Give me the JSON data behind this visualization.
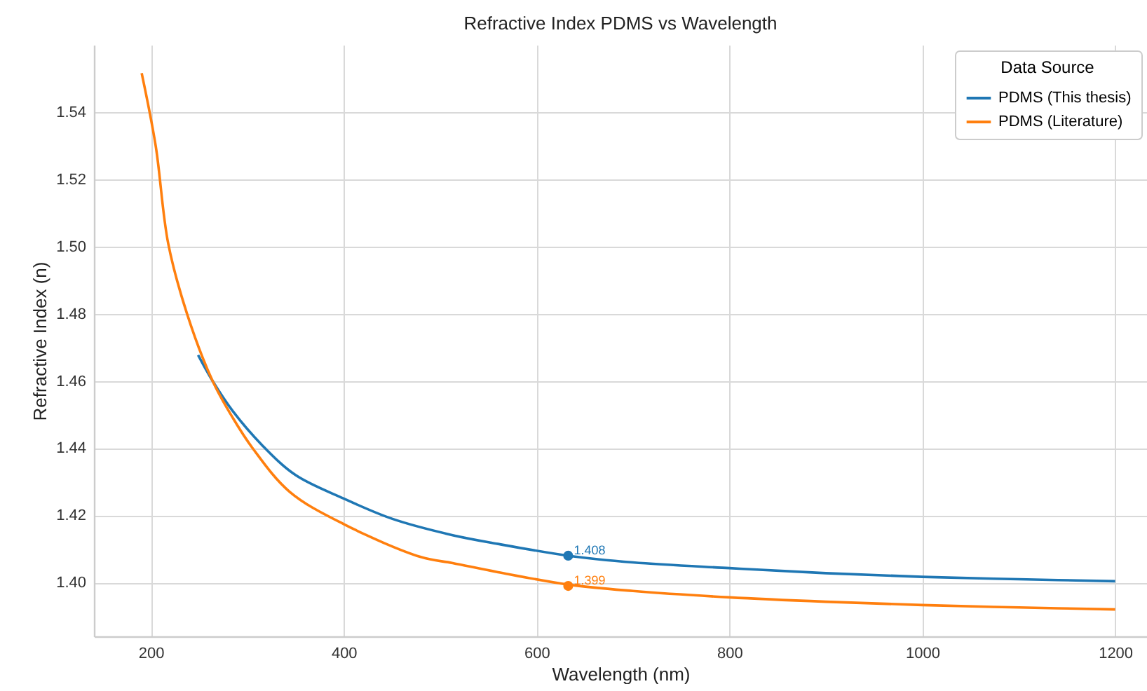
{
  "chart_data": {
    "type": "line",
    "title": "Refractive Index PDMS vs Wavelength",
    "xlabel": "Wavelength (nm)",
    "ylabel": "Refractive Index (n)",
    "legend_title": "Data Source",
    "legend": "top right",
    "grid": true,
    "xlim": [
      141,
      1233
    ],
    "ylim": [
      1.384,
      1.56
    ],
    "xticks": [
      200,
      400,
      600,
      800,
      1000,
      1200
    ],
    "yticks": [
      {
        "value": 1.4,
        "label": "1.40"
      },
      1.42,
      1.44,
      1.46,
      1.48,
      {
        "value": 1.5,
        "label": "1.50"
      },
      1.52,
      1.54
    ],
    "series": [
      {
        "name": "PDMS (This thesis)",
        "type": "line",
        "color": "#1f77b4",
        "x": [
          249,
          264,
          285,
          315,
          350,
          400,
          450,
          513,
          560,
          632.8,
          700,
          800,
          900,
          1000,
          1100,
          1200
        ],
        "values": [
          1.4677,
          1.46,
          1.451,
          1.441,
          1.432,
          1.425,
          1.419,
          1.4141,
          1.4115,
          1.408,
          1.406,
          1.4043,
          1.4028,
          1.4017,
          1.401,
          1.4004
        ]
      },
      {
        "name": "PDMS (Literature)",
        "type": "line",
        "color": "#ff7f0e",
        "x": [
          190.5,
          205,
          218,
          237.5,
          264,
          285,
          305.5,
          344,
          400,
          480,
          513,
          560,
          632.8,
          700,
          800,
          900,
          1000,
          1100,
          1200
        ],
        "values": [
          1.5516,
          1.53,
          1.5009,
          1.48,
          1.46,
          1.449,
          1.44,
          1.427,
          1.4174,
          1.4076,
          1.4058,
          1.4031,
          1.3994,
          1.3975,
          1.3956,
          1.3943,
          1.3933,
          1.3926,
          1.392
        ]
      },
      {
        "type": "scatter",
        "marker": "circle",
        "color": "#1f77b4",
        "x": [
          632.8
        ],
        "values": [
          1.408
        ],
        "value_labels": [
          "1.408"
        ]
      },
      {
        "type": "scatter",
        "marker": "circle",
        "color": "#ff7f0e",
        "x": [
          632.8
        ],
        "values": [
          1.399
        ],
        "value_labels": [
          "1.399"
        ]
      }
    ]
  }
}
